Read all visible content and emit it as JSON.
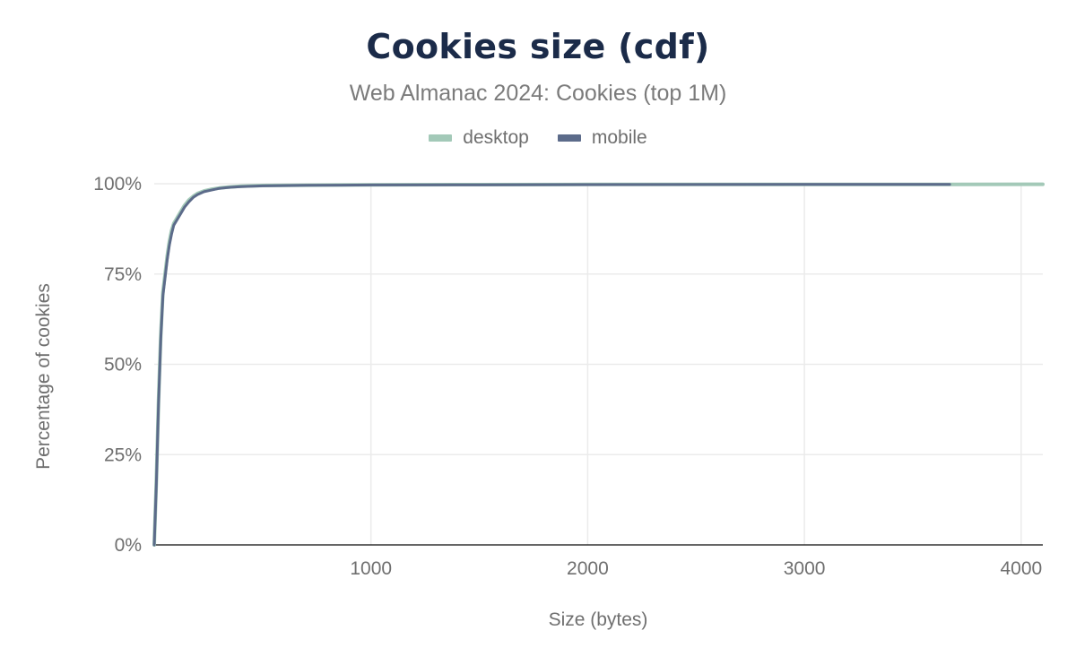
{
  "chart_data": {
    "type": "line",
    "title": "Cookies size (cdf)",
    "subtitle": "Web Almanac 2024: Cookies (top 1M)",
    "xlabel": "Size (bytes)",
    "ylabel": "Percentage of cookies",
    "xlim": [
      0,
      4100
    ],
    "ylim": [
      0,
      100
    ],
    "x_ticks": [
      1000,
      2000,
      3000,
      4000
    ],
    "x_tick_labels": [
      "1000",
      "2000",
      "3000",
      "4000"
    ],
    "y_ticks": [
      0,
      25,
      50,
      75,
      100
    ],
    "y_tick_labels": [
      "0%",
      "25%",
      "50%",
      "75%",
      "100%"
    ],
    "grid": true,
    "legend_position": "top-center",
    "series": [
      {
        "name": "desktop",
        "color": "#a3c9b8",
        "x": [
          0,
          10,
          20,
          30,
          40,
          50,
          60,
          70,
          80,
          90,
          100,
          120,
          140,
          160,
          180,
          200,
          230,
          260,
          300,
          350,
          400,
          500,
          700,
          1000,
          1500,
          2000,
          3000,
          3700,
          4100
        ],
        "y": [
          0,
          18,
          40,
          58,
          70,
          75,
          80,
          84,
          87,
          89,
          90,
          92,
          94,
          95.5,
          96.5,
          97.3,
          98,
          98.4,
          98.8,
          99.1,
          99.3,
          99.5,
          99.6,
          99.7,
          99.75,
          99.8,
          99.82,
          99.83,
          99.85
        ]
      },
      {
        "name": "mobile",
        "color": "#5c6b8a",
        "x": [
          0,
          10,
          20,
          30,
          40,
          50,
          60,
          70,
          80,
          90,
          100,
          120,
          140,
          160,
          180,
          200,
          230,
          260,
          300,
          350,
          400,
          500,
          700,
          1000,
          1500,
          2000,
          3000,
          3670
        ],
        "y": [
          0,
          17,
          39,
          57,
          69,
          74,
          79,
          83,
          86,
          88.5,
          89.5,
          91.5,
          93.5,
          95,
          96.2,
          97,
          97.8,
          98.2,
          98.7,
          99,
          99.2,
          99.4,
          99.55,
          99.65,
          99.7,
          99.75,
          99.8,
          99.82
        ]
      }
    ]
  }
}
